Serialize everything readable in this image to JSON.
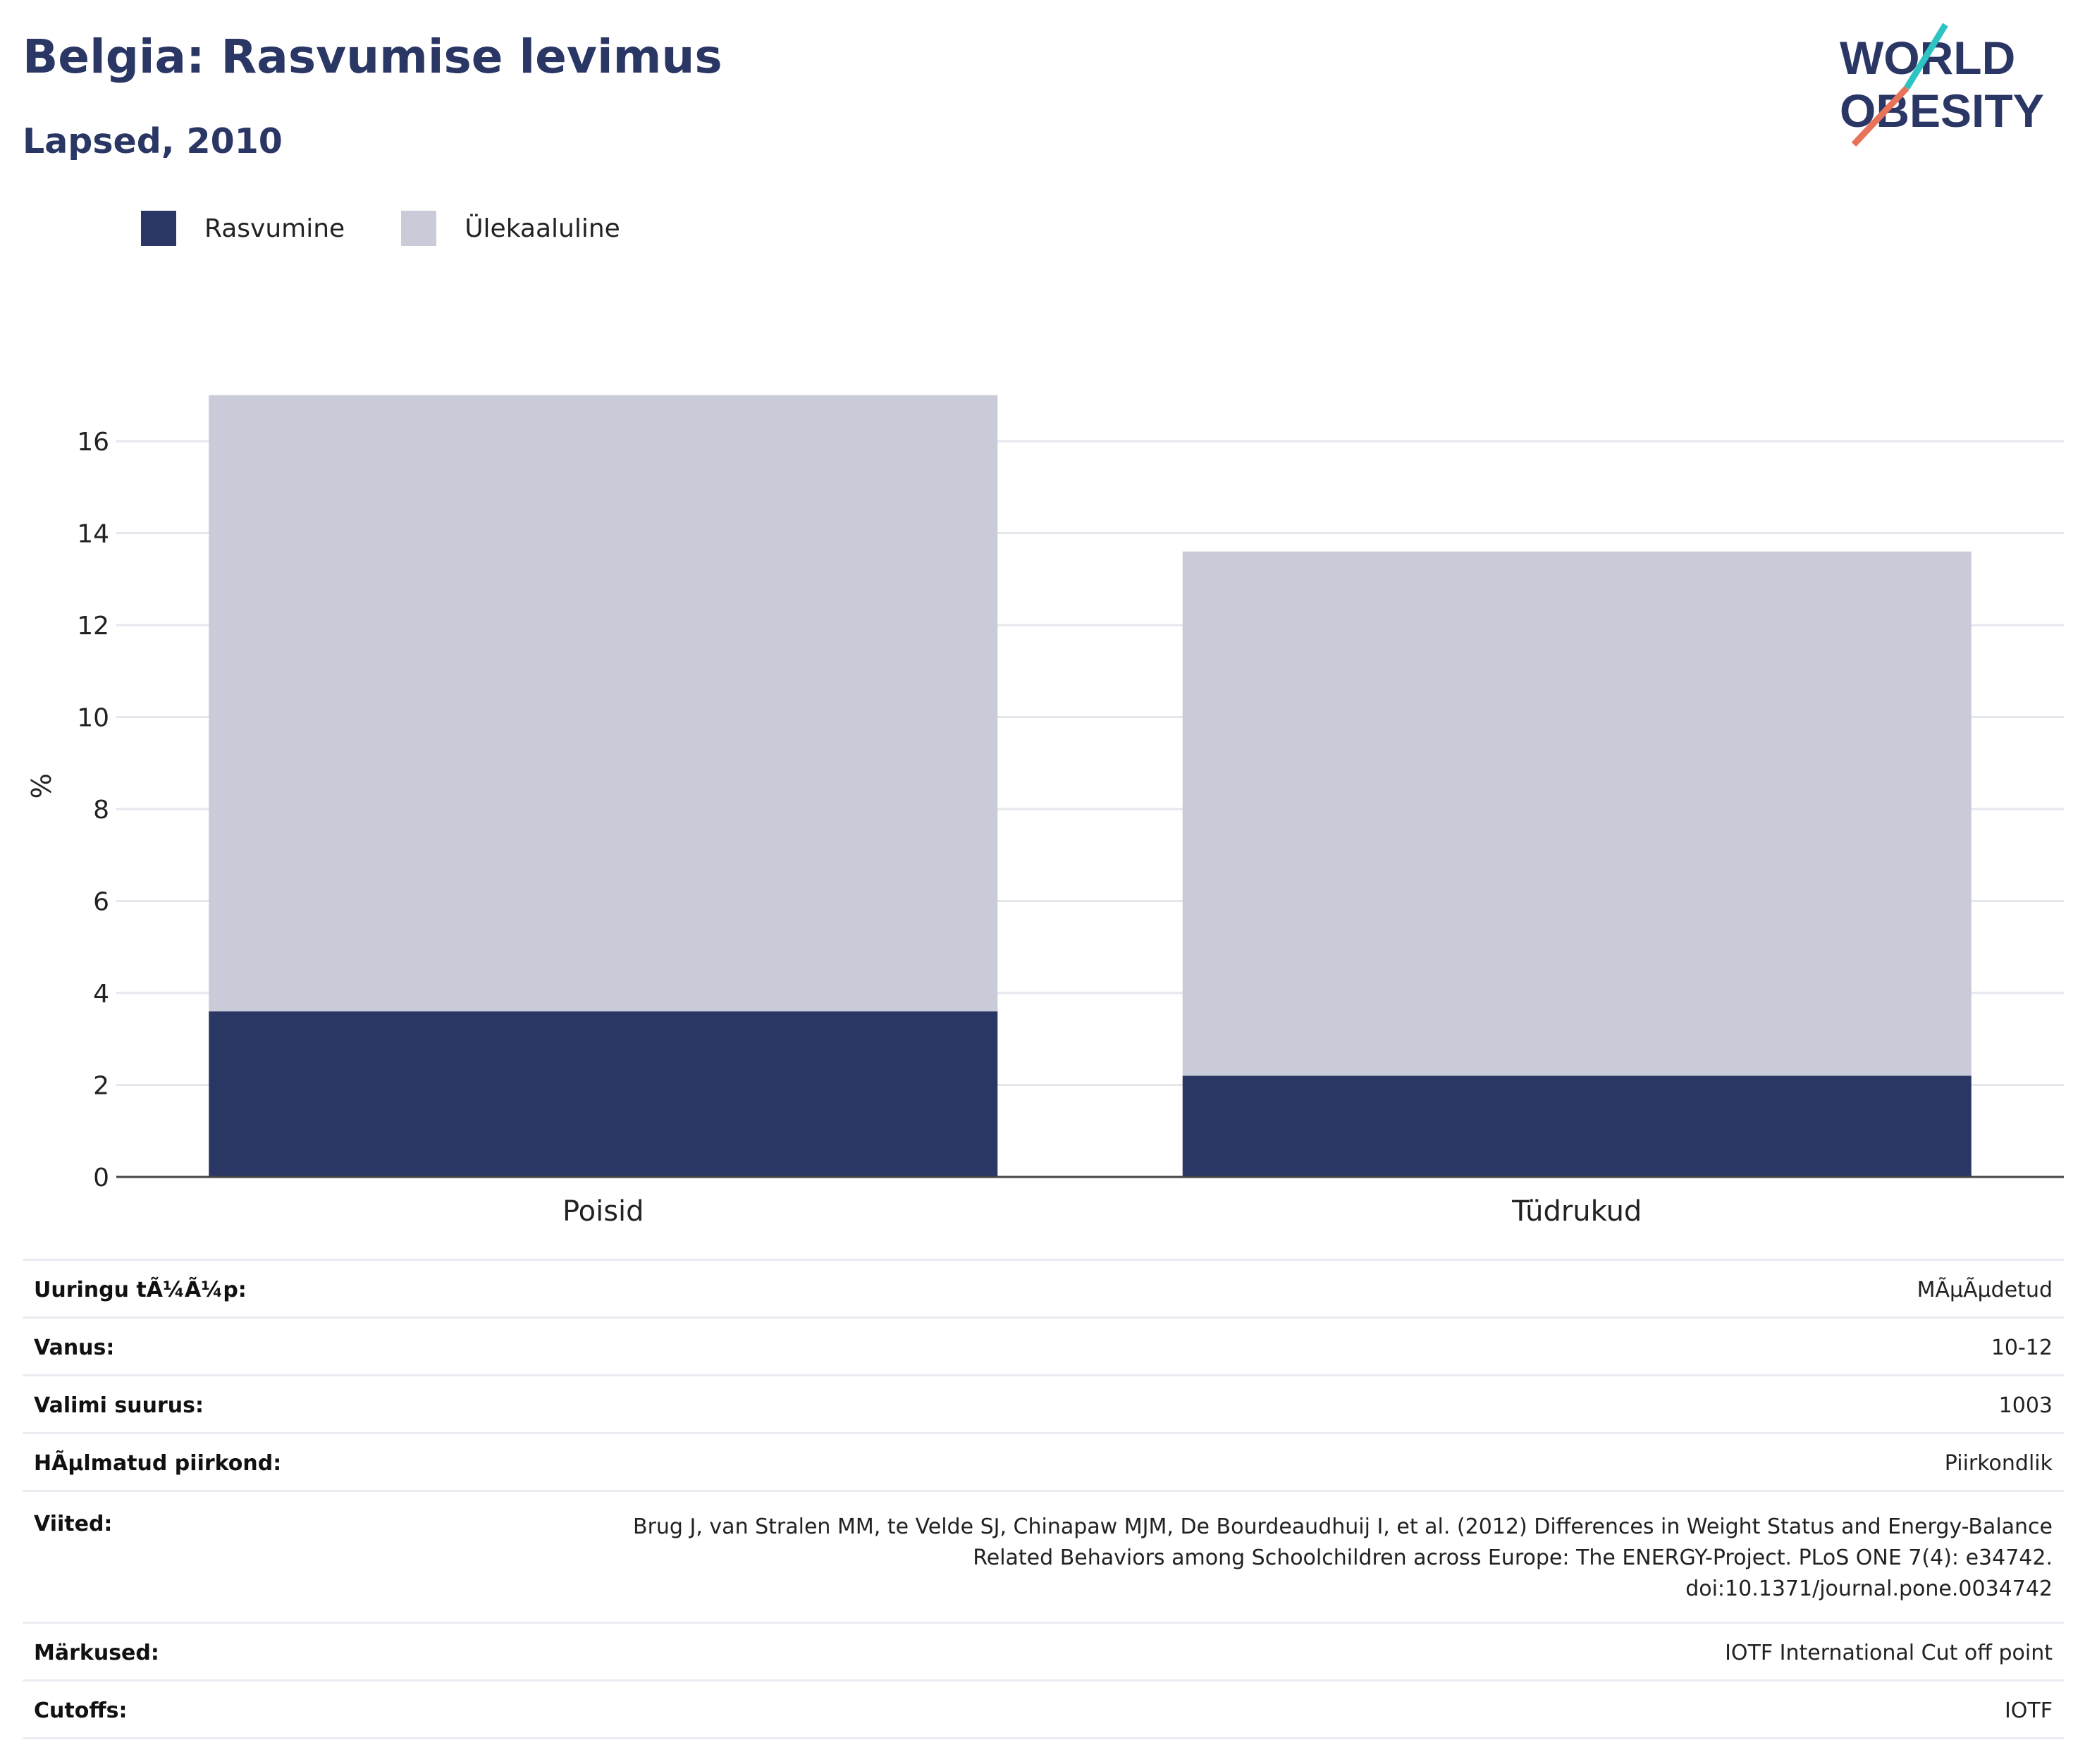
{
  "header": {
    "title": "Belgia: Rasvumise levimus",
    "subtitle": "Lapsed, 2010"
  },
  "logo": {
    "line1": "WORLD",
    "line2": "OBESITY"
  },
  "colors": {
    "obesity": "#2a3664",
    "overweight": "#c9ccd8",
    "brand": "#2a3664",
    "accent_teal": "#2ec4c4",
    "accent_coral": "#e8735a"
  },
  "legend": [
    {
      "label": "Rasvumine",
      "color": "#2a3664"
    },
    {
      "label": "Ülekaaluline",
      "color": "#c9ccd8"
    }
  ],
  "chart_data": {
    "type": "bar",
    "stacked": true,
    "categories": [
      "Poisid",
      "Tüdrukud"
    ],
    "series": [
      {
        "name": "Rasvumine",
        "values": [
          3.6,
          2.2
        ]
      },
      {
        "name": "Ülekaaluline",
        "values": [
          13.4,
          11.4
        ]
      }
    ],
    "ylabel": "%",
    "ylim": [
      0,
      17
    ],
    "yticks": [
      0,
      2,
      4,
      6,
      8,
      10,
      12,
      14,
      16
    ],
    "grid": true,
    "legend_position": "top-left"
  },
  "info": [
    {
      "key": "Uuringu tÃ¼Ã¼p:",
      "value": [
        "MÃµÃµdetud"
      ]
    },
    {
      "key": "Vanus:",
      "value": [
        "10-12"
      ]
    },
    {
      "key": "Valimi suurus:",
      "value": [
        "1003"
      ]
    },
    {
      "key": "HÃµlmatud piirkond:",
      "value": [
        "Piirkondlik"
      ]
    },
    {
      "key": "Viited:",
      "value": [
        "Brug J, van Stralen MM, te Velde SJ, Chinapaw MJM, De Bourdeaudhuij I, et al. (2012) Differences in Weight Status and Energy-Balance",
        "Related Behaviors among Schoolchildren across Europe: The ENERGY-Project. PLoS ONE 7(4): e34742.",
        "doi:10.1371/journal.pone.0034742"
      ]
    },
    {
      "key": "Märkused:",
      "value": [
        "IOTF International Cut off point"
      ]
    },
    {
      "key": "Cutoffs:",
      "value": [
        "IOTF"
      ]
    }
  ]
}
